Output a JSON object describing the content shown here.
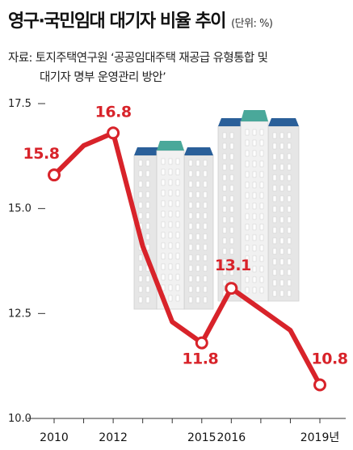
{
  "header": {
    "title": "영구·국민임대 대기자 비율 추이",
    "unit": "(단위: %)"
  },
  "source": {
    "line1": "자료:  토지주택연구원 ‘공공임대주택 재공급 유형통합 및",
    "line2": "대기자 명부 운영관리 방안’"
  },
  "colors": {
    "line": "#d8232a",
    "building_body": "#e9e9e9",
    "building_roof_blue": "#2a5f99",
    "building_roof_teal": "#4aa89a"
  },
  "chart_data": {
    "type": "line",
    "x": [
      2010,
      2011,
      2012,
      2013,
      2014,
      2015,
      2016,
      2017,
      2018,
      2019
    ],
    "series": [
      {
        "values": [
          15.8,
          16.5,
          16.8,
          14.1,
          12.3,
          11.8,
          13.1,
          12.6,
          12.1,
          10.8
        ]
      }
    ],
    "data_labels": [
      {
        "index": 0,
        "text": "15.8"
      },
      {
        "index": 2,
        "text": "16.8"
      },
      {
        "index": 5,
        "text": "11.8"
      },
      {
        "index": 6,
        "text": "13.1"
      },
      {
        "index": 9,
        "text": "10.8"
      }
    ],
    "y_ticks": [
      {
        "value": 17.5,
        "label": "17.5"
      },
      {
        "value": 15.0,
        "label": "15.0"
      },
      {
        "value": 12.5,
        "label": "12.5"
      },
      {
        "value": 10.0,
        "label": "10.0"
      }
    ],
    "x_tick_labels": [
      {
        "value": 2010,
        "label": "2010"
      },
      {
        "value": 2012,
        "label": "2012"
      },
      {
        "value": 2015,
        "label": "2015"
      },
      {
        "value": 2016,
        "label": "2016"
      },
      {
        "value": 2019,
        "label": "2019년"
      }
    ],
    "ylim": [
      10.0,
      17.5
    ],
    "xlim": [
      2010,
      2019
    ],
    "grid": false,
    "xlabel": "",
    "ylabel": ""
  }
}
